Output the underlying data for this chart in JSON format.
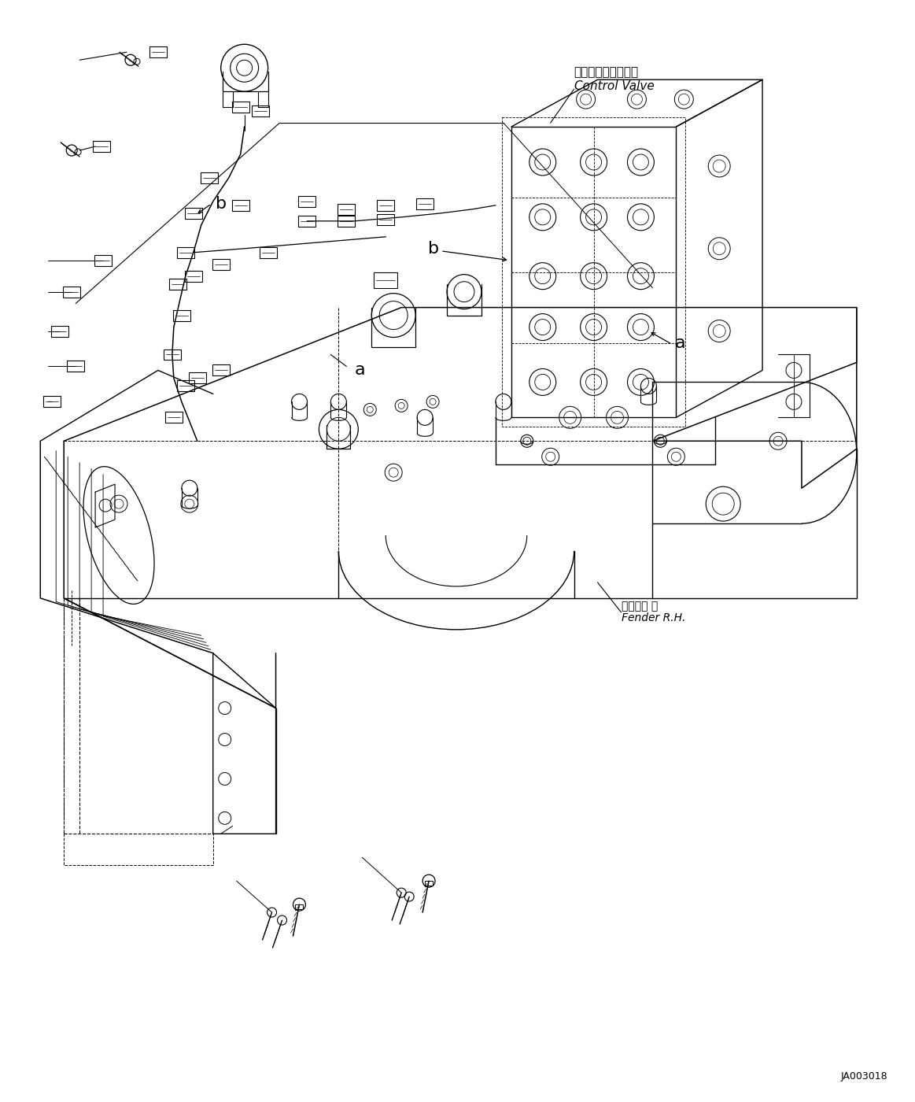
{
  "bg_color": "#ffffff",
  "line_color": "#000000",
  "label_a_text": "a",
  "label_b_text": "b",
  "control_valve_jp": "コントロールバルブ",
  "control_valve_en": "Control Valve",
  "fender_jp": "フェンダ 右",
  "fender_en": "Fender R.H.",
  "diagram_code": "JA003018",
  "label_fontsize": 16,
  "annot_fontsize": 9,
  "code_fontsize": 9,
  "valve_label_fontsize": 11,
  "fender_label_fontsize": 10
}
